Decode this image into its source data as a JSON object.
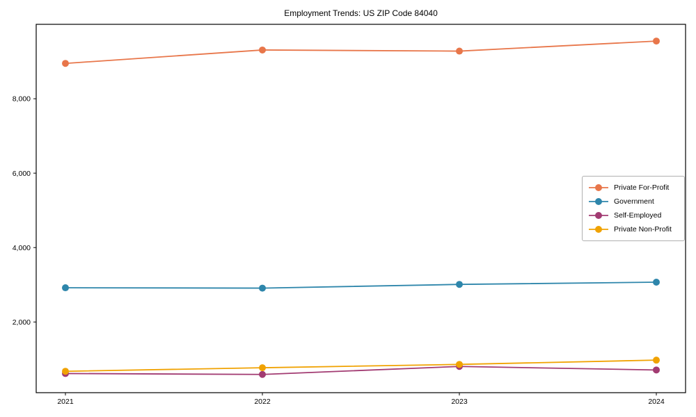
{
  "figure": {
    "title": "Employment Trends: US ZIP Code 84040",
    "background_color": "#ffffff",
    "spine_color": "#000000",
    "legend_border_color": "#b0b0b0"
  },
  "chart_data": {
    "type": "line",
    "title": "Employment Trends: US ZIP Code 84040",
    "xlabel": "",
    "ylabel": "",
    "categories": [
      "2021",
      "2022",
      "2023",
      "2024"
    ],
    "series": [
      {
        "name": "Private For-Profit",
        "color": "#E8764A",
        "values": [
          8950,
          9310,
          9280,
          9550
        ]
      },
      {
        "name": "Government",
        "color": "#2E86AB",
        "values": [
          2920,
          2910,
          3010,
          3070
        ]
      },
      {
        "name": "Self-Employed",
        "color": "#A23B72",
        "values": [
          615,
          590,
          805,
          710
        ]
      },
      {
        "name": "Private Non-Profit",
        "color": "#F0A202",
        "values": [
          675,
          770,
          860,
          975
        ]
      }
    ],
    "ylim": [
      100,
      10000
    ],
    "yticks": [
      2000,
      4000,
      6000,
      8000
    ],
    "ytick_labels": [
      "2,000",
      "4,000",
      "6,000",
      "8,000"
    ],
    "grid": false,
    "legend_position": "right-middle",
    "marker": "circle",
    "marker_radius": 5,
    "line_width": 1.8
  }
}
